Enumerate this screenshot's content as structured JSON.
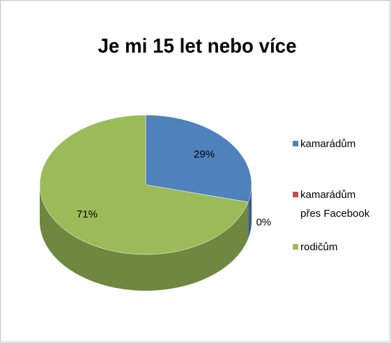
{
  "chart_data": {
    "type": "pie3d",
    "title": "Je mi 15 let nebo více",
    "categories": [
      "kamarádům",
      "kamarádům přes Facebook",
      "rodičům"
    ],
    "values": [
      29,
      0,
      71
    ],
    "value_labels": [
      "29%",
      "0%",
      "71%"
    ],
    "colors": [
      "#4f81bd",
      "#c0504d",
      "#9bbb59"
    ],
    "legend": "right"
  }
}
